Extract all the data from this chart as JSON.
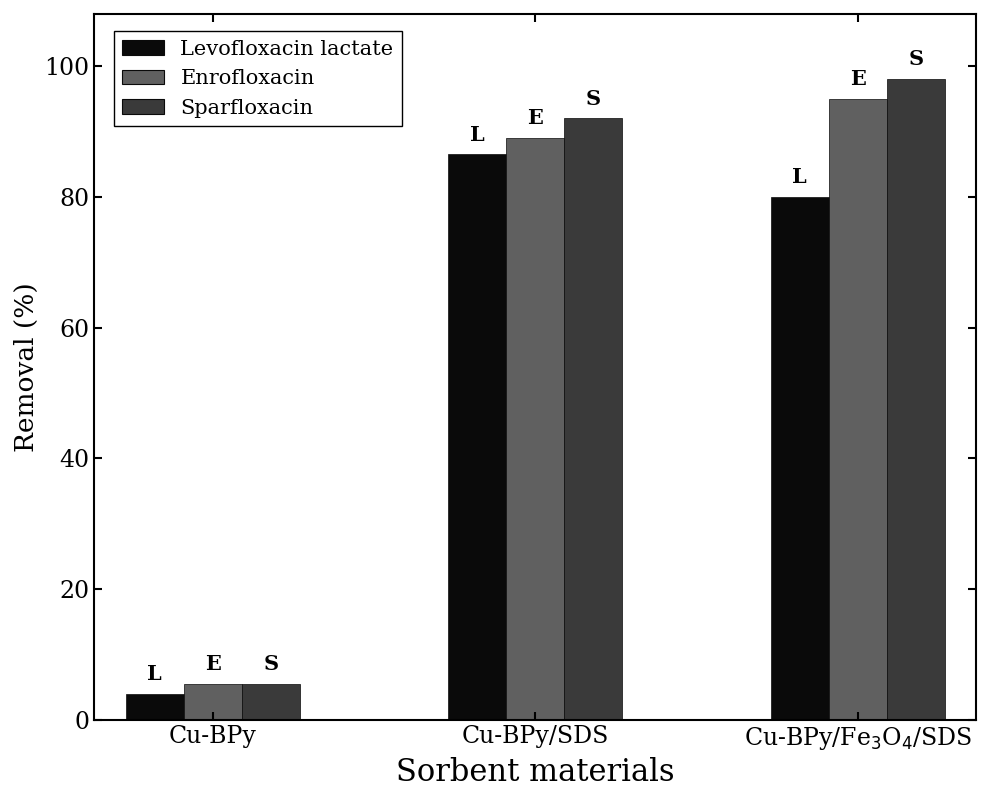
{
  "series": {
    "Levofloxacin lactate": [
      4.0,
      86.5,
      80.0
    ],
    "Enrofloxacin": [
      5.5,
      89.0,
      95.0
    ],
    "Sparfloxacin": [
      5.5,
      92.0,
      98.0
    ]
  },
  "bar_colors": {
    "Levofloxacin lactate": "#0a0a0a",
    "Enrofloxacin": "#606060",
    "Sparfloxacin": "#3a3a3a"
  },
  "labels": [
    "L",
    "E",
    "S"
  ],
  "ylabel": "Removal (%)",
  "xlabel": "Sorbent materials",
  "ylim": [
    0,
    108
  ],
  "yticks": [
    0,
    20,
    40,
    60,
    80,
    100
  ],
  "bar_width": 0.27,
  "label_fontsize": 15,
  "ylabel_fontsize": 19,
  "xlabel_fontsize": 22,
  "tick_fontsize": 17,
  "legend_fontsize": 15,
  "background_color": "#ffffff",
  "edge_color": "#0a0a0a"
}
